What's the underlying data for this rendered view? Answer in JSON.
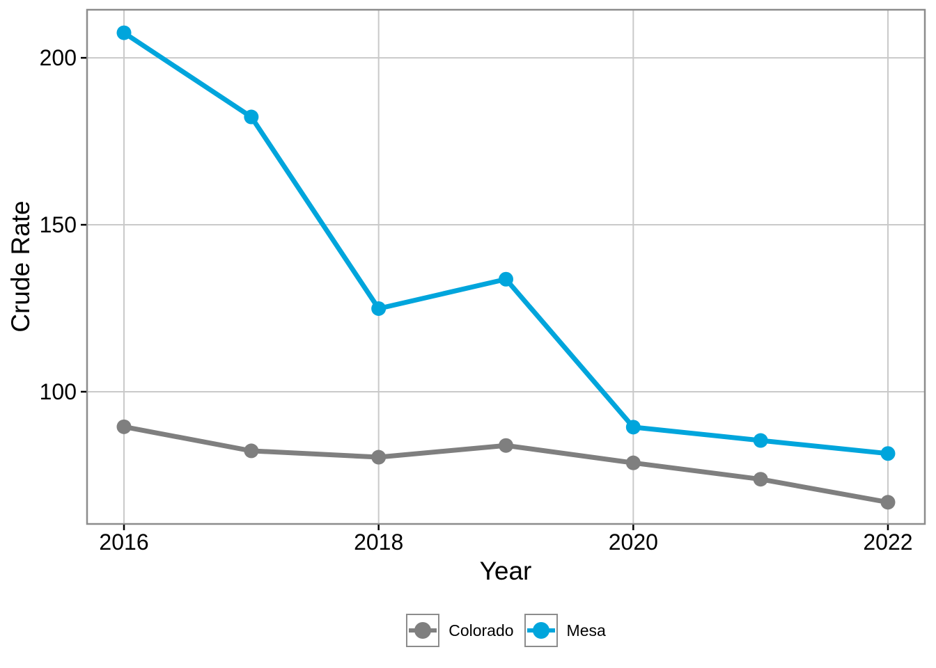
{
  "chart_data": {
    "type": "line",
    "title": "",
    "xlabel": "Year",
    "ylabel": "Crude Rate",
    "x": [
      2016,
      2017,
      2018,
      2019,
      2020,
      2021,
      2022
    ],
    "x_ticks": [
      2016,
      2018,
      2020,
      2022
    ],
    "y_ticks": [
      100,
      150,
      200
    ],
    "xlim": [
      2015.71,
      2022.29
    ],
    "ylim": [
      60.4,
      214.4
    ],
    "grid": true,
    "legend_position": "bottom",
    "series": [
      {
        "name": "Colorado",
        "color": "#7f7f7f",
        "values": [
          89.5,
          82.3,
          80.4,
          83.9,
          78.7,
          73.8,
          66.9
        ]
      },
      {
        "name": "Mesa",
        "color": "#00a5dc",
        "values": [
          207.5,
          182.3,
          124.9,
          133.7,
          89.4,
          85.4,
          81.5
        ]
      }
    ],
    "colors": {
      "grid": "#c9c9c9",
      "panel_border": "#8c8c8c",
      "tick": "#000000",
      "text": "#000000",
      "background": "#ffffff"
    }
  }
}
